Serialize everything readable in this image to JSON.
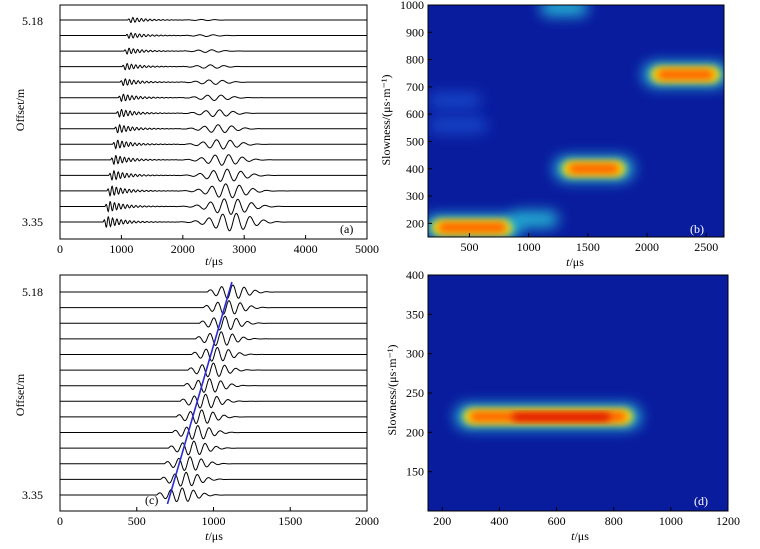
{
  "chart_data": [
    {
      "type": "line",
      "panel_label": "(a)",
      "xlabel_italic": "t",
      "xlabel_unit": "/μs",
      "ylabel": "Offset/m",
      "xlim": [
        0,
        5000
      ],
      "xticks": [
        "0",
        "1000",
        "2000",
        "3000",
        "4000",
        "5000"
      ],
      "ytick_labels": [
        "5.18",
        "3.35"
      ],
      "offset_range_m": [
        3.35,
        5.18
      ],
      "trace_count": 14,
      "p_wave_onset_us": [
        1100,
        700
      ],
      "late_packet_us": [
        2350,
        2800
      ]
    },
    {
      "type": "heatmap",
      "panel_label": "(b)",
      "xlabel_italic": "t",
      "xlabel_unit": "/μs",
      "ylabel": "Slowness/(μs·m⁻¹)",
      "xlim": [
        150,
        2650
      ],
      "ylim": [
        150,
        1000
      ],
      "xticks": [
        "500",
        "1000",
        "1500",
        "2000",
        "2500"
      ],
      "yticks": [
        "200",
        "300",
        "400",
        "500",
        "600",
        "700",
        "800",
        "900",
        "1000"
      ],
      "colors": {
        "background": "#0a1c9e",
        "low": "#1a52d6",
        "mid": "#29d4e0",
        "high": "#ff5a00",
        "peak": "#d80000"
      },
      "blobs": [
        {
          "t_range": [
            150,
            900
          ],
          "slowness": 185,
          "level": "high"
        },
        {
          "t_range": [
            850,
            1250
          ],
          "slowness": 215,
          "level": "mid"
        },
        {
          "t_range": [
            1250,
            1850
          ],
          "slowness": 400,
          "level": "high"
        },
        {
          "t_range": [
            2000,
            2650
          ],
          "slowness": 745,
          "level": "high"
        },
        {
          "t_range": [
            1100,
            1500
          ],
          "slowness": 990,
          "level": "mid"
        },
        {
          "t_range": [
            150,
            600
          ],
          "slowness": 650,
          "level": "low"
        },
        {
          "t_range": [
            150,
            650
          ],
          "slowness": 560,
          "level": "low"
        }
      ]
    },
    {
      "type": "line",
      "panel_label": "(c)",
      "xlabel_italic": "t",
      "xlabel_unit": "/μs",
      "ylabel": "Offset/m",
      "xlim": [
        0,
        2000
      ],
      "xticks": [
        "0",
        "500",
        "1000",
        "1500",
        "2000"
      ],
      "ytick_labels": [
        "5.18",
        "3.35"
      ],
      "trace_count": 14,
      "wave_onset_us": [
        1000,
        670
      ],
      "fit_line_us": [
        1120,
        700
      ],
      "fit_line_color": "#2b2bd4"
    },
    {
      "type": "heatmap",
      "panel_label": "(d)",
      "xlabel_italic": "t",
      "xlabel_unit": "/μs",
      "ylabel": "Slowness/(μs·m⁻¹)",
      "xlim": [
        150,
        1200
      ],
      "ylim": [
        100,
        400
      ],
      "xticks": [
        "200",
        "400",
        "600",
        "800",
        "1000",
        "1200"
      ],
      "yticks": [
        "150",
        "200",
        "250",
        "300",
        "350",
        "400"
      ],
      "colors": {
        "background": "#0a1c9e",
        "mid": "#29d4e0",
        "high": "#ff5a00",
        "peak": "#d80000"
      },
      "blobs": [
        {
          "t_range": [
            260,
            880
          ],
          "slowness": 220,
          "level": "peak"
        }
      ]
    }
  ]
}
